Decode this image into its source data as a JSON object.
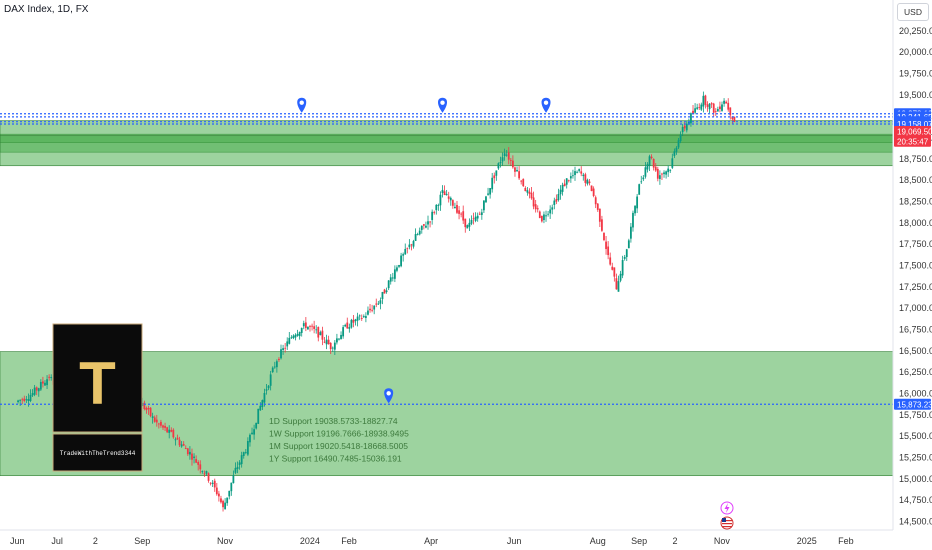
{
  "header": {
    "title": "DAX Index, 1D, FX",
    "currency": "USD"
  },
  "logo": {
    "letter": "T",
    "tagline": "TradeWithTheTrend3344"
  },
  "notes": [
    "1D Support 19038.5733-18827.74",
    "1W Support 19196.7666-18938.9495",
    "1M Support 19020.5418-18668.5005",
    "1Y Support 16490.7485-15036.191"
  ],
  "price_tags": [
    {
      "label": "19,278.19",
      "value": 19278.19,
      "color": "#2962ff"
    },
    {
      "label": "19,241.65",
      "value": 19241.65,
      "color": "#2962ff"
    },
    {
      "label": "19,184.86",
      "value": 19184.86,
      "color": "#2962ff"
    },
    {
      "label": "19,158.07",
      "value": 19158.07,
      "color": "#2962ff"
    },
    {
      "label": "19,069.50",
      "value": 19069.5,
      "color": "#f23645"
    },
    {
      "label": "20:35:47",
      "value": 18955,
      "color": "#f23645"
    },
    {
      "label": "15,873.23",
      "value": 15873.23,
      "color": "#2962ff"
    }
  ],
  "chart_data": {
    "type": "candlestick",
    "title": "DAX Index, 1D, FX",
    "ylim": [
      14400,
      20400
    ],
    "y_ticks": [
      14500,
      14750,
      15000,
      15250,
      15500,
      15750,
      16000,
      16250,
      16500,
      16750,
      17000,
      17250,
      17500,
      17750,
      18000,
      18250,
      18500,
      18750,
      19000,
      19250,
      19500,
      19750,
      20000,
      20250
    ],
    "y_tick_labels": [
      "14,500.00",
      "14,750.00",
      "15,000.00",
      "15,250.00",
      "15,500.00",
      "15,750.00",
      "16,000.00",
      "16,250.00",
      "16,500.00",
      "16,750.00",
      "17,000.00",
      "17,250.00",
      "17,500.00",
      "17,750.00",
      "18,000.00",
      "18,250.00",
      "18,500.00",
      "18,750.00",
      "19,000.00",
      "19,250.00",
      "19,500.00",
      "19,750.00",
      "20,000.00",
      "20,250.00"
    ],
    "x_ticks": [
      {
        "label": "Jun",
        "t": 0
      },
      {
        "label": "Jul",
        "t": 1
      },
      {
        "label": "2",
        "t": 2
      },
      {
        "label": "Sep",
        "t": 3
      },
      {
        "label": "Nov",
        "t": 5
      },
      {
        "label": "2024",
        "t": 7
      },
      {
        "label": "Feb",
        "t": 8
      },
      {
        "label": "Apr",
        "t": 10
      },
      {
        "label": "Jun",
        "t": 12
      },
      {
        "label": "Aug",
        "t": 14
      },
      {
        "label": "Sep",
        "t": 15
      },
      {
        "label": "2",
        "t": 16
      },
      {
        "label": "Nov",
        "t": 17
      },
      {
        "label": "2025",
        "t": 19
      },
      {
        "label": "Feb",
        "t": 20
      }
    ],
    "price_path": [
      {
        "t": 0,
        "v": 15900
      },
      {
        "t": 0.4,
        "v": 16000
      },
      {
        "t": 0.8,
        "v": 16200
      },
      {
        "t": 1.2,
        "v": 15900
      },
      {
        "t": 1.6,
        "v": 15700
      },
      {
        "t": 2.0,
        "v": 15850
      },
      {
        "t": 2.5,
        "v": 16100
      },
      {
        "t": 3.0,
        "v": 15900
      },
      {
        "t": 3.4,
        "v": 15650
      },
      {
        "t": 3.8,
        "v": 15500
      },
      {
        "t": 4.2,
        "v": 15300
      },
      {
        "t": 4.6,
        "v": 15050
      },
      {
        "t": 4.9,
        "v": 14800
      },
      {
        "t": 5.0,
        "v": 14650
      },
      {
        "t": 5.3,
        "v": 15100
      },
      {
        "t": 5.6,
        "v": 15400
      },
      {
        "t": 6.0,
        "v": 16000
      },
      {
        "t": 6.3,
        "v": 16400
      },
      {
        "t": 6.7,
        "v": 16700
      },
      {
        "t": 7.0,
        "v": 16800
      },
      {
        "t": 7.3,
        "v": 16700
      },
      {
        "t": 7.6,
        "v": 16550
      },
      {
        "t": 8.0,
        "v": 16800
      },
      {
        "t": 8.4,
        "v": 16900
      },
      {
        "t": 8.8,
        "v": 17100
      },
      {
        "t": 9.2,
        "v": 17500
      },
      {
        "t": 9.6,
        "v": 17800
      },
      {
        "t": 10.0,
        "v": 18050
      },
      {
        "t": 10.3,
        "v": 18350
      },
      {
        "t": 10.6,
        "v": 18200
      },
      {
        "t": 10.9,
        "v": 17950
      },
      {
        "t": 11.2,
        "v": 18100
      },
      {
        "t": 11.5,
        "v": 18500
      },
      {
        "t": 11.8,
        "v": 18850
      },
      {
        "t": 12.1,
        "v": 18600
      },
      {
        "t": 12.4,
        "v": 18300
      },
      {
        "t": 12.7,
        "v": 18050
      },
      {
        "t": 13.0,
        "v": 18250
      },
      {
        "t": 13.3,
        "v": 18500
      },
      {
        "t": 13.6,
        "v": 18600
      },
      {
        "t": 13.9,
        "v": 18400
      },
      {
        "t": 14.1,
        "v": 18050
      },
      {
        "t": 14.3,
        "v": 17600
      },
      {
        "t": 14.5,
        "v": 17250
      },
      {
        "t": 14.8,
        "v": 17800
      },
      {
        "t": 15.0,
        "v": 18350
      },
      {
        "t": 15.3,
        "v": 18800
      },
      {
        "t": 15.5,
        "v": 18550
      },
      {
        "t": 15.8,
        "v": 18650
      },
      {
        "t": 16.0,
        "v": 19000
      },
      {
        "t": 16.3,
        "v": 19250
      },
      {
        "t": 16.6,
        "v": 19450
      },
      {
        "t": 16.9,
        "v": 19300
      },
      {
        "t": 17.1,
        "v": 19450
      },
      {
        "t": 17.4,
        "v": 19150
      }
    ],
    "zones": [
      {
        "name": "1D Support",
        "from": 19038.5733,
        "to": 18827.74
      },
      {
        "name": "1W Support",
        "from": 19196.7666,
        "to": 18938.9495
      },
      {
        "name": "1M Support",
        "from": 19020.5418,
        "to": 18668.5005
      },
      {
        "name": "1Y Support",
        "from": 16490.7485,
        "to": 15036.191
      }
    ],
    "dotted_lines": [
      19278.19,
      19241.65,
      19184.86,
      19158.07,
      15873.23
    ],
    "markers": [
      {
        "t": 6.9,
        "v": 19278.19
      },
      {
        "t": 10.3,
        "v": 19278.19
      },
      {
        "t": 12.8,
        "v": 19278.19
      },
      {
        "t": 9.0,
        "v": 15873.23
      }
    ]
  }
}
